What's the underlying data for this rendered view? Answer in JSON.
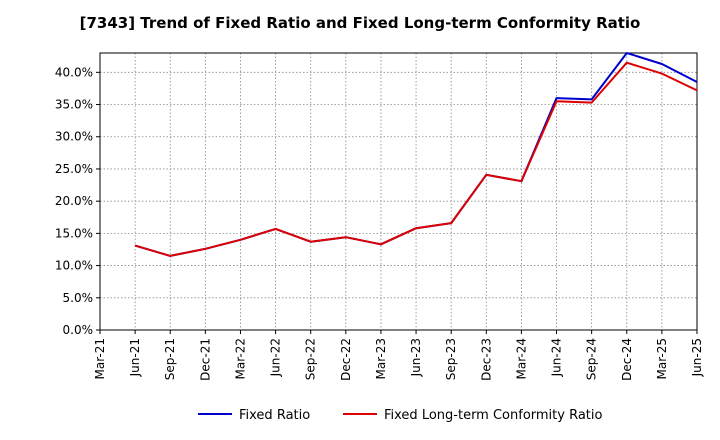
{
  "chart_data": {
    "type": "line",
    "title": "[7343]  Trend of Fixed Ratio and Fixed Long-term Conformity Ratio",
    "xlabel": "",
    "ylabel": "",
    "x": [
      "Mar-21",
      "Jun-21",
      "Sep-21",
      "Dec-21",
      "Mar-22",
      "Jun-22",
      "Sep-22",
      "Dec-22",
      "Mar-23",
      "Jun-23",
      "Sep-23",
      "Dec-23",
      "Mar-24",
      "Jun-24",
      "Sep-24",
      "Dec-24",
      "Mar-25",
      "Jun-25"
    ],
    "ylim": [
      0,
      43
    ],
    "yticks": [
      "0.0%",
      "5.0%",
      "10.0%",
      "15.0%",
      "20.0%",
      "25.0%",
      "30.0%",
      "35.0%",
      "40.0%"
    ],
    "grid": true,
    "legend_position": "bottom",
    "series": [
      {
        "name": "Fixed Ratio",
        "color": "#0000cc",
        "values": [
          null,
          13.1,
          11.5,
          12.6,
          14.0,
          15.7,
          13.7,
          14.4,
          13.3,
          15.8,
          16.6,
          24.1,
          23.1,
          36.0,
          35.8,
          43.0,
          41.3,
          38.5
        ]
      },
      {
        "name": "Fixed Long-term Conformity Ratio",
        "color": "#dd0000",
        "values": [
          null,
          13.1,
          11.5,
          12.6,
          14.0,
          15.7,
          13.7,
          14.4,
          13.3,
          15.8,
          16.6,
          24.1,
          23.1,
          35.5,
          35.3,
          41.5,
          39.8,
          37.2
        ]
      }
    ]
  }
}
